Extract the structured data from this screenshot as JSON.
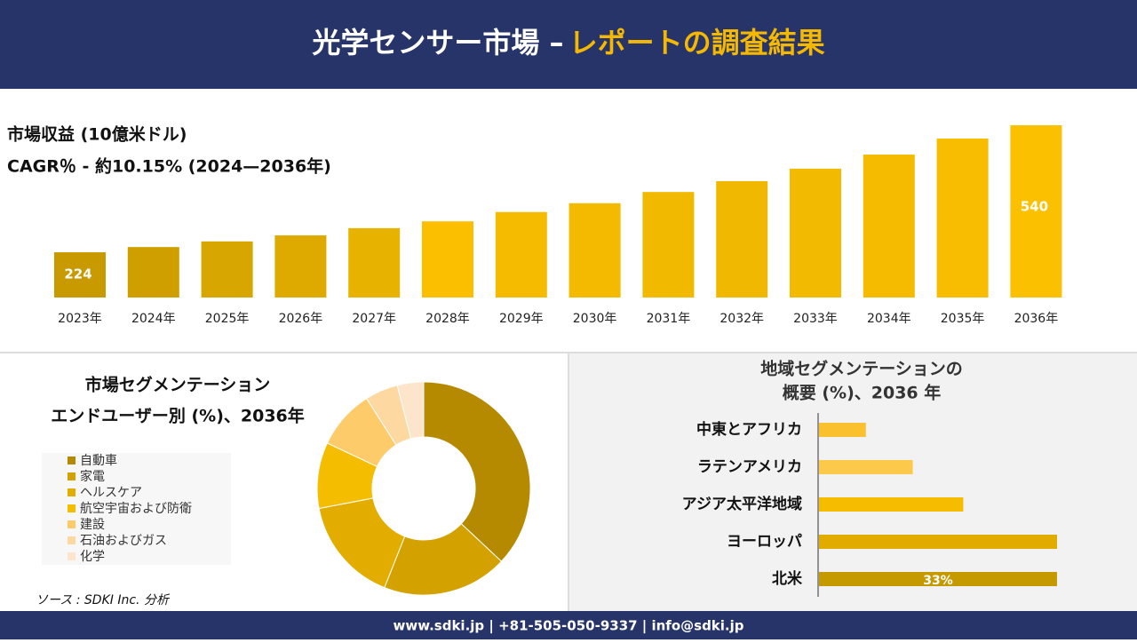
{
  "header": {
    "title": "光学センサー市場 –",
    "title_highlight": "レポートの調査結果"
  },
  "chart_data": [
    {
      "type": "bar",
      "subtitle": "市場収益 (10億米ドル)",
      "annotation": "CAGR％ - 約10.15% (2024—2036年)",
      "categories": [
        "2023年",
        "2024年",
        "2025年",
        "2026年",
        "2027年",
        "2028年",
        "2029年",
        "2030年",
        "2031年",
        "2032年",
        "2033年",
        "2034年",
        "2035年",
        "2036年"
      ],
      "values": [
        224,
        237,
        251,
        266,
        284,
        301,
        324,
        346,
        374,
        401,
        432,
        467,
        507,
        540
      ],
      "value_labels": [
        "224",
        null,
        null,
        null,
        null,
        null,
        null,
        null,
        null,
        null,
        null,
        null,
        null,
        "540"
      ],
      "colors": [
        "#c99a00",
        "#cf9f00",
        "#d8a600",
        "#deaa00",
        "#e8b200",
        "#fbbf00",
        "#f5bb00",
        "#f3ba00",
        "#f1b900",
        "#f0b800",
        "#f2ba00",
        "#f4bb00",
        "#f8bd00",
        "#fbc000"
      ]
    },
    {
      "type": "donut",
      "title": "市場セグメンテーション",
      "subtitle": "エンドユーザー別 (%)、2036年",
      "categories": [
        "自動車",
        "家電",
        "ヘルスケア",
        "航空宇宙および防衛",
        "建設",
        "石油およびガス",
        "化学"
      ],
      "values": [
        37,
        19,
        16,
        10,
        9,
        5,
        4
      ],
      "colors": [
        "#b58a00",
        "#d3a100",
        "#e3ad00",
        "#f5bd00",
        "#fdcb6a",
        "#fdd8a0",
        "#fde5cc"
      ]
    },
    {
      "type": "hbar",
      "title": "地域セグメンテーションの",
      "subtitle": "概要 (%)、2036 年",
      "categories": [
        "中東とアフリカ",
        "ラテンアメリカ",
        "アジア太平洋地域",
        "ヨーロッパ",
        "北米"
      ],
      "values": [
        6.5,
        13,
        20,
        33,
        33
      ],
      "value_labels": [
        null,
        null,
        null,
        null,
        "33%"
      ],
      "colors": [
        "#fbc02d",
        "#fcc94a",
        "#f6bd00",
        "#e2ab00",
        "#c49a00"
      ]
    }
  ],
  "source": "ソース : SDKI Inc. 分析",
  "footer": "www.sdki.jp | +81-505-050-9337 | info@sdki.jp"
}
